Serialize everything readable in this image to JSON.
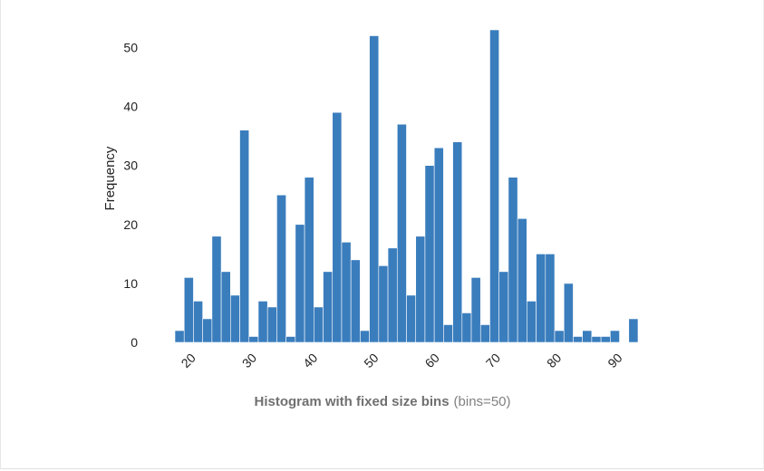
{
  "chart_data": {
    "type": "bar",
    "title": "Histogram with fixed size bins",
    "subtitle": "(bins=50)",
    "xlabel": "",
    "ylabel": "Frequency",
    "x_range": [
      17.5,
      93.5
    ],
    "xlim": [
      17.5,
      93.5
    ],
    "ylim": [
      0,
      55
    ],
    "xticks": [
      20,
      30,
      40,
      50,
      60,
      70,
      80,
      90
    ],
    "yticks": [
      0,
      10,
      20,
      30,
      40,
      50
    ],
    "grid": false,
    "legend": "none",
    "bar_color": "#3a7dbd",
    "values": [
      2,
      11,
      7,
      4,
      18,
      12,
      8,
      36,
      1,
      7,
      6,
      25,
      1,
      20,
      28,
      6,
      12,
      39,
      17,
      14,
      2,
      52,
      13,
      16,
      37,
      8,
      18,
      30,
      33,
      3,
      34,
      5,
      11,
      3,
      53,
      12,
      28,
      21,
      7,
      15,
      15,
      2,
      10,
      1,
      2,
      1,
      1,
      2,
      0,
      4
    ]
  }
}
